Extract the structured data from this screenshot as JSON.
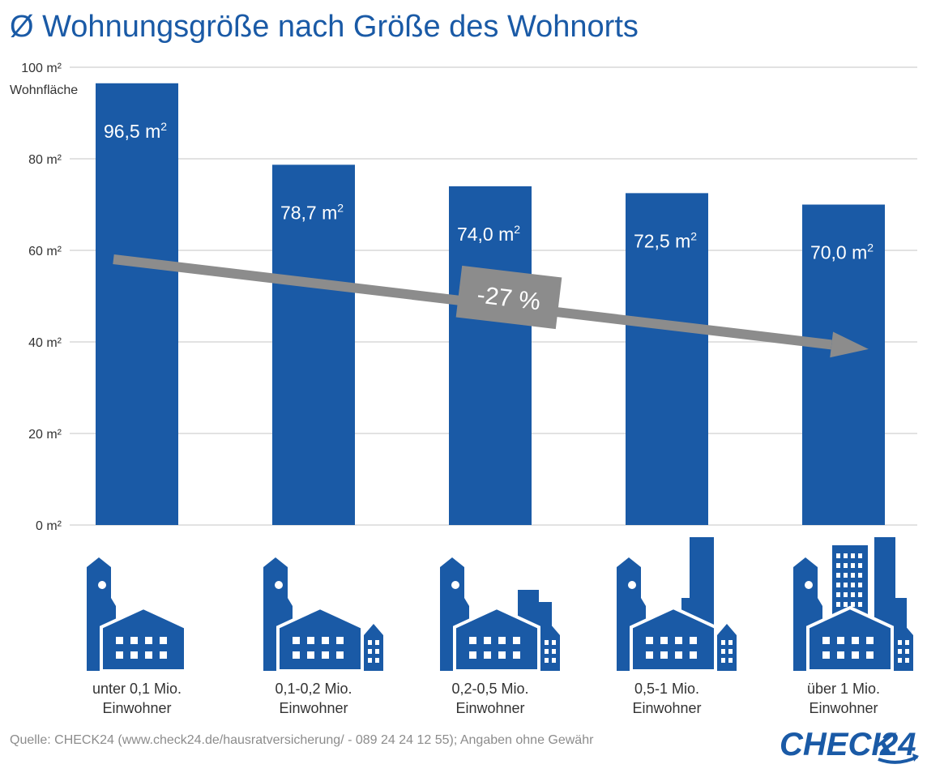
{
  "title": "Ø Wohnungsgröße nach Größe des Wohnorts",
  "chart_data": {
    "type": "bar",
    "ylabel": "Wohnfläche",
    "ylim": [
      0,
      100
    ],
    "yticks": [
      0,
      20,
      40,
      60,
      80,
      100
    ],
    "ytick_labels": [
      "0 m²",
      "20 m²",
      "40 m²",
      "60 m²",
      "80 m²",
      "100 m²"
    ],
    "grid": true,
    "categories": [
      [
        "unter 0,1 Mio.",
        "Einwohner"
      ],
      [
        "0,1-0,2 Mio.",
        "Einwohner"
      ],
      [
        "0,2-0,5 Mio.",
        "Einwohner"
      ],
      [
        "0,5-1 Mio.",
        "Einwohner"
      ],
      [
        "über 1 Mio.",
        "Einwohner"
      ]
    ],
    "values": [
      96.5,
      78.7,
      74.0,
      72.5,
      70.0
    ],
    "value_labels": [
      "96,5 m",
      "78,7 m",
      "74,0 m",
      "72,5 m",
      "70,0 m"
    ],
    "value_label_sup": "2",
    "trend_label": "-27 %",
    "bar_color": "#1a5aa6",
    "trend_color": "#8c8c8c",
    "grid_color": "#d9d9d9",
    "icons": [
      "small-town-icon",
      "town-icon",
      "small-city-icon",
      "city-icon",
      "metropolis-icon"
    ]
  },
  "footer": {
    "source": "Quelle: CHECK24 (www.check24.de/hausratversicherung/ - 089 24 24 12 55); Angaben ohne Gewähr"
  },
  "logo": {
    "text": "CHECK24"
  }
}
